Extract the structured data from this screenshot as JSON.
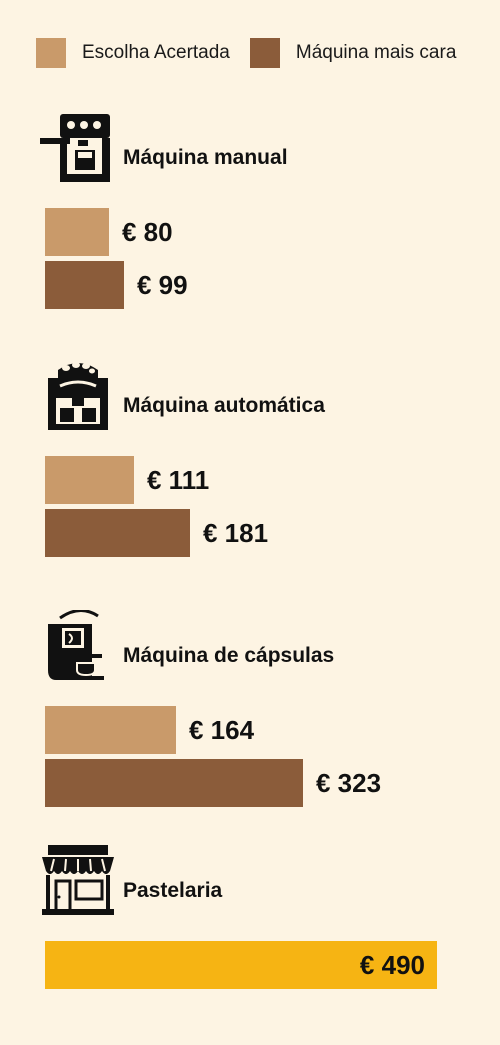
{
  "legend": {
    "items": [
      {
        "label": "Escolha Acertada",
        "color": "#c99a6a"
      },
      {
        "label": "Máquina mais cara",
        "color": "#8b5c3a"
      }
    ]
  },
  "colors": {
    "background": "#fdf4e3",
    "escolha": "#c99a6a",
    "cara": "#8b5c3a",
    "pastelaria": "#f6b413"
  },
  "chart_data": {
    "type": "bar",
    "orientation": "horizontal",
    "currency": "€",
    "groups": [
      {
        "category": "Máquina manual",
        "icon": "espresso-machine-icon",
        "bars": [
          {
            "series": "Escolha Acertada",
            "value": 80,
            "label": "€ 80"
          },
          {
            "series": "Máquina mais cara",
            "value": 99,
            "label": "€ 99"
          }
        ]
      },
      {
        "category": "Máquina automática",
        "icon": "bean-to-cup-machine-icon",
        "bars": [
          {
            "series": "Escolha Acertada",
            "value": 111,
            "label": "€ 111"
          },
          {
            "series": "Máquina mais cara",
            "value": 181,
            "label": "€ 181"
          }
        ]
      },
      {
        "category": "Máquina de cápsulas",
        "icon": "capsule-machine-icon",
        "bars": [
          {
            "series": "Escolha Acertada",
            "value": 164,
            "label": "€ 164"
          },
          {
            "series": "Máquina mais cara",
            "value": 323,
            "label": "€ 323"
          }
        ]
      },
      {
        "category": "Pastelaria",
        "icon": "storefront-icon",
        "bars": [
          {
            "series": "Pastelaria",
            "value": 490,
            "label": "€ 490"
          }
        ]
      }
    ]
  }
}
